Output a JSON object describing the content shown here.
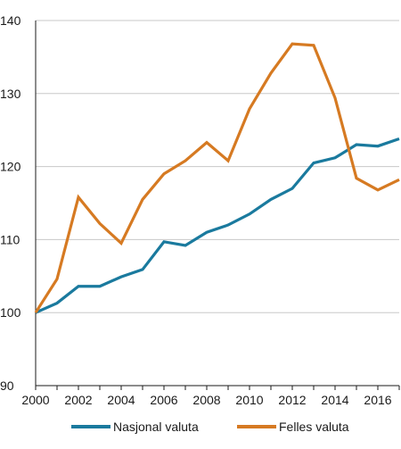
{
  "chart_data": {
    "type": "line",
    "x": [
      2000,
      2001,
      2002,
      2003,
      2004,
      2005,
      2006,
      2007,
      2008,
      2009,
      2010,
      2011,
      2012,
      2013,
      2014,
      2015,
      2016,
      2017
    ],
    "series": [
      {
        "name": "Nasjonal valuta",
        "color": "#1a7a9e",
        "values": [
          100,
          101.3,
          103.6,
          103.6,
          104.9,
          105.9,
          109.7,
          109.2,
          111.0,
          112.0,
          113.5,
          115.5,
          117.0,
          120.5,
          121.2,
          123.0,
          122.8,
          123.8
        ]
      },
      {
        "name": "Felles valuta",
        "color": "#d67a22",
        "values": [
          100,
          104.6,
          115.8,
          112.2,
          109.5,
          115.5,
          119.0,
          120.8,
          123.3,
          120.8,
          127.9,
          132.8,
          136.8,
          136.6,
          129.4,
          118.4,
          116.8,
          118.2
        ]
      }
    ],
    "xlim": [
      2000,
      2017
    ],
    "ylim": [
      90,
      140
    ],
    "x_ticks": [
      2000,
      2002,
      2004,
      2006,
      2008,
      2010,
      2012,
      2014,
      2016
    ],
    "y_ticks": [
      90,
      100,
      110,
      120,
      130,
      140
    ],
    "x_tick_labels": [
      "2000",
      "2002",
      "2004",
      "2006",
      "2008",
      "2010",
      "2012",
      "2014",
      "2016"
    ],
    "y_tick_labels": [
      "90",
      "100",
      "110",
      "120",
      "130",
      "140"
    ],
    "grid": "horizontal",
    "legend_position": "bottom",
    "title": "",
    "xlabel": "",
    "ylabel": ""
  }
}
